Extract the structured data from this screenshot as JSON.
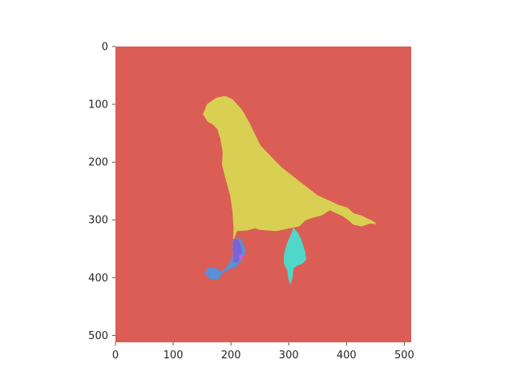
{
  "chart_data": {
    "type": "heatmap",
    "title": "",
    "xlabel": "",
    "ylabel": "",
    "xlim": [
      0,
      512
    ],
    "ylim": [
      512,
      0
    ],
    "y_inverted": true,
    "grid": false,
    "x_ticks": [
      0,
      100,
      200,
      300,
      400,
      500
    ],
    "y_ticks": [
      0,
      100,
      200,
      300,
      400,
      500
    ],
    "colors": {
      "background": "#da5e55",
      "bird_body": "#d9cf52",
      "leg_left": "#5b8fd6",
      "leg_purple": "#7c63d8",
      "leg_right": "#4fd7c9",
      "magenta_spot": "#c85fd0"
    },
    "regions": [
      {
        "label": "background",
        "color": "#da5e55",
        "polygon": [
          [
            0,
            0
          ],
          [
            512,
            0
          ],
          [
            512,
            512
          ],
          [
            0,
            512
          ]
        ]
      },
      {
        "label": "bird-body",
        "color": "#d9cf52",
        "polygon": [
          [
            169,
            135
          ],
          [
            160,
            130
          ],
          [
            152,
            117
          ],
          [
            159,
            100
          ],
          [
            175,
            89
          ],
          [
            190,
            86
          ],
          [
            203,
            92
          ],
          [
            219,
            110
          ],
          [
            232,
            133
          ],
          [
            251,
            172
          ],
          [
            287,
            209
          ],
          [
            320,
            235
          ],
          [
            350,
            258
          ],
          [
            372,
            268
          ],
          [
            387,
            275
          ],
          [
            401,
            279
          ],
          [
            412,
            289
          ],
          [
            426,
            293
          ],
          [
            436,
            298
          ],
          [
            445,
            302
          ],
          [
            451,
            307
          ],
          [
            440,
            306
          ],
          [
            426,
            311
          ],
          [
            412,
            308
          ],
          [
            403,
            300
          ],
          [
            393,
            293
          ],
          [
            371,
            283
          ],
          [
            357,
            292
          ],
          [
            341,
            296
          ],
          [
            328,
            301
          ],
          [
            318,
            311
          ],
          [
            303,
            314
          ],
          [
            279,
            319
          ],
          [
            264,
            318
          ],
          [
            250,
            317
          ],
          [
            242,
            314
          ],
          [
            228,
            318
          ],
          [
            210,
            319
          ],
          [
            204,
            336
          ],
          [
            205,
            316
          ],
          [
            203,
            285
          ],
          [
            199,
            258
          ],
          [
            190,
            225
          ],
          [
            185,
            205
          ],
          [
            186,
            182
          ],
          [
            182,
            160
          ],
          [
            177,
            143
          ]
        ]
      },
      {
        "label": "leg-left",
        "color": "#5b8fd6",
        "polygon": [
          [
            204,
            334
          ],
          [
            216,
            332
          ],
          [
            220,
            341
          ],
          [
            226,
            354
          ],
          [
            219,
            369
          ],
          [
            209,
            381
          ],
          [
            200,
            384
          ],
          [
            187,
            391
          ],
          [
            178,
            402
          ],
          [
            164,
            403
          ],
          [
            159,
            396
          ],
          [
            154,
            392
          ],
          [
            162,
            383
          ],
          [
            173,
            383
          ],
          [
            183,
            390
          ],
          [
            193,
            382
          ],
          [
            199,
            373
          ],
          [
            204,
            360
          ],
          [
            203,
            346
          ]
        ]
      },
      {
        "label": "leg-purple",
        "color": "#7c63d8",
        "polygon": [
          [
            205,
            334
          ],
          [
            213,
            335
          ],
          [
            216,
            344
          ],
          [
            219,
            355
          ],
          [
            216,
            366
          ],
          [
            210,
            375
          ],
          [
            204,
            372
          ],
          [
            205,
            357
          ],
          [
            204,
            345
          ]
        ]
      },
      {
        "label": "leg-right",
        "color": "#4fd7c9",
        "polygon": [
          [
            304,
            326
          ],
          [
            308,
            314
          ],
          [
            316,
            323
          ],
          [
            322,
            336
          ],
          [
            328,
            355
          ],
          [
            330,
            369
          ],
          [
            323,
            376
          ],
          [
            314,
            379
          ],
          [
            308,
            384
          ],
          [
            306,
            401
          ],
          [
            303,
            411
          ],
          [
            300,
            403
          ],
          [
            298,
            388
          ],
          [
            292,
            376
          ],
          [
            292,
            361
          ],
          [
            296,
            345
          ],
          [
            300,
            334
          ]
        ]
      },
      {
        "label": "magenta-spot",
        "color": "#c85fd0",
        "polygon": [
          [
            214,
            362
          ],
          [
            219,
            360
          ],
          [
            221,
            366
          ],
          [
            216,
            369
          ]
        ]
      }
    ]
  }
}
